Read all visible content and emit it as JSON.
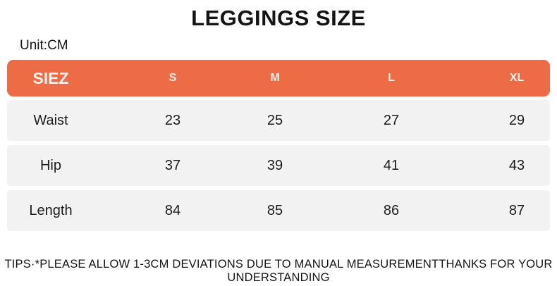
{
  "page": {
    "title": "LEGGINGS SIZE",
    "unit_label": "Unit:CM",
    "tip": "TIPS·*PLEASE ALLOW 1-3CM DEVIATIONS DUE TO MANUAL MEASUREMENTTHANKS FOR YOUR UNDERSTANDING"
  },
  "table": {
    "header": {
      "c0": "SIEZ",
      "c1": "S",
      "c2": "M",
      "c3": "L",
      "c4": "XL"
    },
    "rows": [
      {
        "label": "Waist",
        "values": [
          "23",
          "25",
          "27",
          "29"
        ]
      },
      {
        "label": "Hip",
        "values": [
          "37",
          "39",
          "41",
          "43"
        ]
      },
      {
        "label": "Length",
        "values": [
          "84",
          "85",
          "86",
          "87"
        ]
      }
    ]
  },
  "colors": {
    "header_bg": "#ED6C45",
    "header_text": "#FDF3EE",
    "row_bg": "#F2F2F2",
    "text": "#141414"
  },
  "chart_data": {
    "type": "table",
    "title": "LEGGINGS SIZE",
    "unit": "CM",
    "columns": [
      "SIEZ",
      "S",
      "M",
      "L",
      "XL"
    ],
    "rows": [
      [
        "Waist",
        23,
        25,
        27,
        29
      ],
      [
        "Hip",
        37,
        39,
        41,
        43
      ],
      [
        "Length",
        84,
        85,
        86,
        87
      ]
    ],
    "note": "TIPS·*PLEASE ALLOW 1-3CM DEVIATIONS DUE TO MANUAL MEASUREMENTTHANKS FOR YOUR UNDERSTANDING"
  }
}
